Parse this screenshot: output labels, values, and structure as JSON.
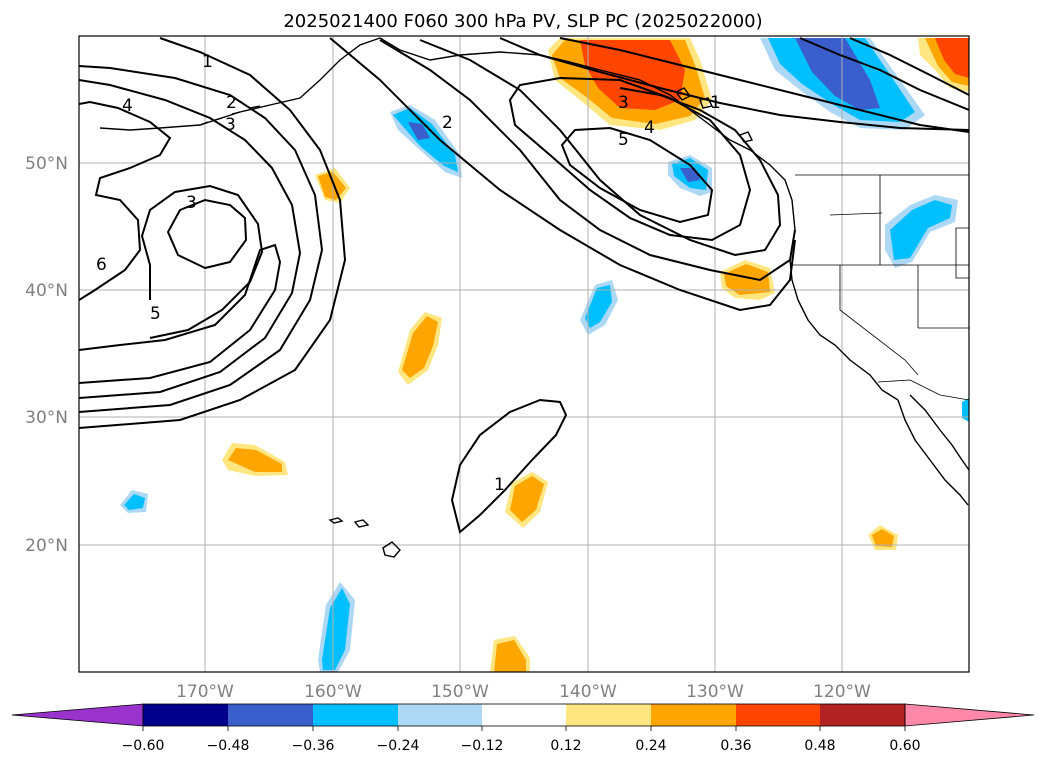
{
  "title": "2025021400 F060 300 hPa PV, SLP PC (2025022000)",
  "lat_labels": [
    "50°N",
    "40°N",
    "30°N",
    "20°N"
  ],
  "lon_labels": [
    "170°W",
    "160°W",
    "150°W",
    "140°W",
    "130°W",
    "120°W"
  ],
  "contour_labels": [
    "1",
    "2",
    "3",
    "4",
    "3",
    "5",
    "6",
    "2",
    "3",
    "4",
    "5",
    "1",
    "1"
  ],
  "colorbar": {
    "ticks": [
      "−0.60",
      "−0.48",
      "−0.36",
      "−0.24",
      "−0.12",
      "0.12",
      "0.24",
      "0.36",
      "0.48",
      "0.60"
    ],
    "colors": [
      "#9933cc",
      "#00008b",
      "#3a5fcd",
      "#00bfff",
      "#add8f5",
      "#ffffff",
      "#ffe680",
      "#ffa500",
      "#ff4500",
      "#b22222",
      "#ff88aa"
    ]
  },
  "colors": {
    "neg_strong": "#3a5fcd",
    "neg_mid": "#00bfff",
    "neg_weak": "#add8f5",
    "pos_weak": "#ffe680",
    "pos_mid": "#ffa500",
    "pos_strong": "#ff4500"
  }
}
